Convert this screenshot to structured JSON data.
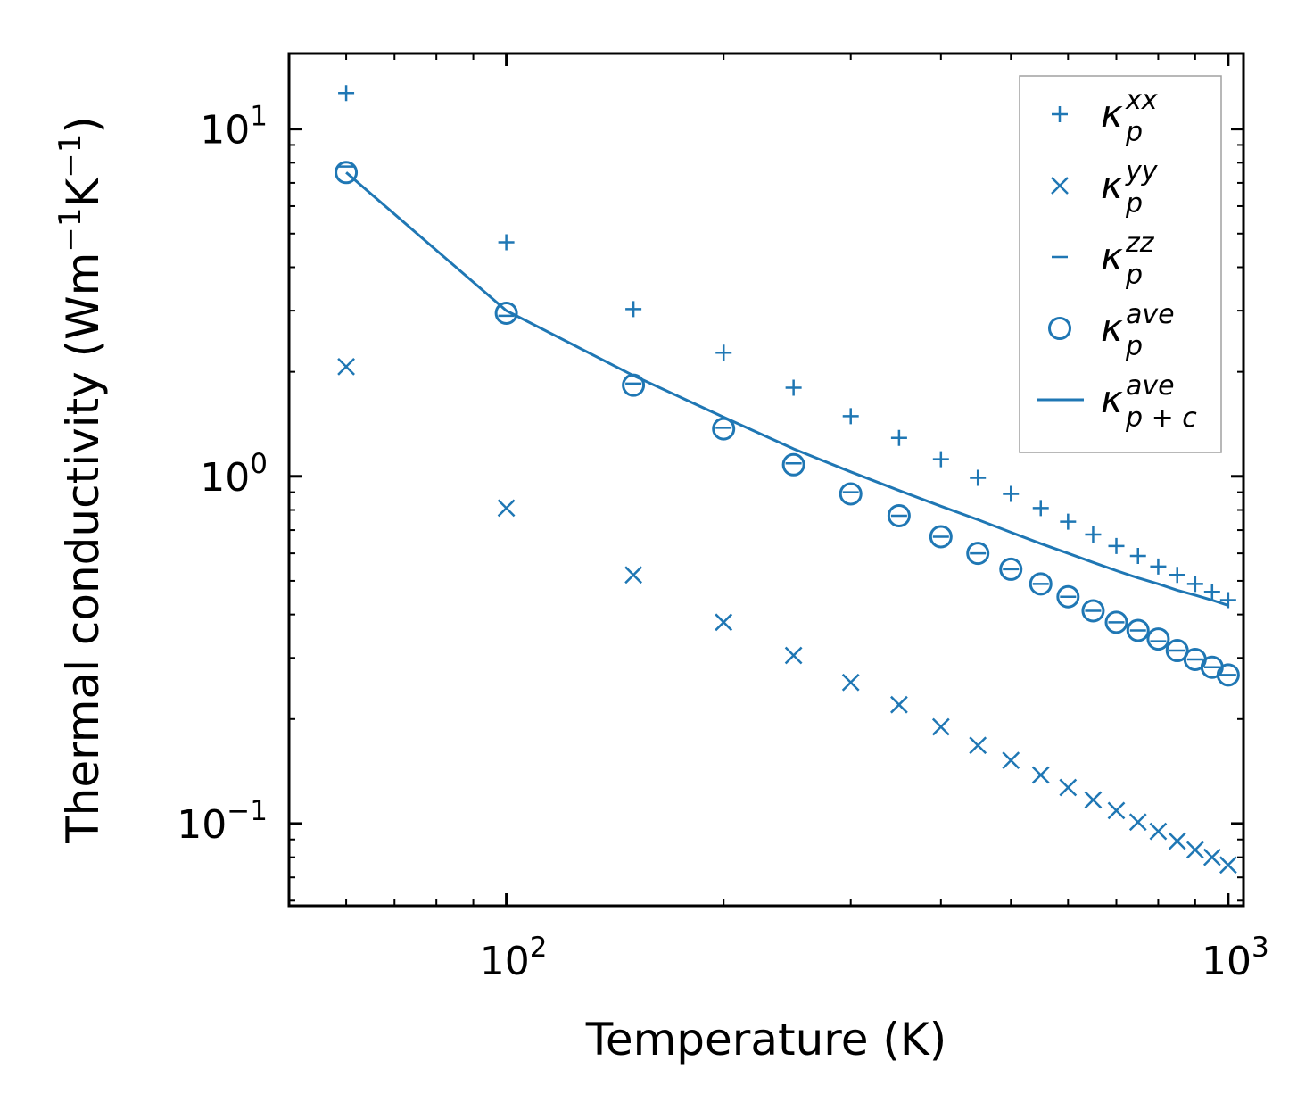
{
  "chart_data": {
    "type": "scatter",
    "title": "",
    "xlabel": "Temperature (K)",
    "ylabel": "Thermal conductivity (Wm",
    "ylabel_sup1": "−1",
    "ylabel_mid": "K",
    "ylabel_sup2": "−1",
    "ylabel_end": ")",
    "xscale": "log",
    "yscale": "log",
    "xlim": [
      50,
      1050
    ],
    "ylim": [
      0.058,
      16.5
    ],
    "grid": false,
    "legend_position": "top-right",
    "x_major_ticks": [
      {
        "value": 100,
        "base": "10",
        "exp": "2"
      },
      {
        "value": 1000,
        "base": "10",
        "exp": "3"
      }
    ],
    "y_major_ticks": [
      {
        "value": 0.1,
        "base": "10",
        "exp": "−1"
      },
      {
        "value": 1,
        "base": "10",
        "exp": "0"
      },
      {
        "value": 10,
        "base": "10",
        "exp": "1"
      }
    ],
    "color": "#1f77b4",
    "x": [
      60,
      100,
      150,
      200,
      250,
      300,
      350,
      400,
      450,
      500,
      550,
      600,
      650,
      700,
      750,
      800,
      850,
      900,
      950,
      1000
    ],
    "series": [
      {
        "name": "kxx",
        "legend_base": "κ",
        "legend_sup": "xx",
        "legend_sub": "p",
        "marker": "plus",
        "values": [
          12.7,
          4.72,
          3.03,
          2.27,
          1.8,
          1.49,
          1.29,
          1.12,
          0.99,
          0.89,
          0.81,
          0.74,
          0.68,
          0.63,
          0.59,
          0.55,
          0.52,
          0.49,
          0.465,
          0.44
        ]
      },
      {
        "name": "kyy",
        "legend_base": "κ",
        "legend_sup": "yy",
        "legend_sub": "p",
        "marker": "x",
        "values": [
          2.07,
          0.81,
          0.52,
          0.38,
          0.305,
          0.255,
          0.22,
          0.19,
          0.168,
          0.152,
          0.138,
          0.127,
          0.117,
          0.109,
          0.101,
          0.095,
          0.089,
          0.084,
          0.08,
          0.076
        ]
      },
      {
        "name": "kzz",
        "legend_base": "κ",
        "legend_sup": "zz",
        "legend_sub": "p",
        "marker": "hline",
        "values": [
          7.8,
          2.9,
          1.85,
          1.38,
          1.09,
          0.9,
          0.77,
          0.67,
          0.6,
          0.54,
          0.49,
          0.45,
          0.41,
          0.38,
          0.36,
          0.335,
          0.315,
          0.297,
          0.282,
          0.268
        ]
      },
      {
        "name": "kave",
        "legend_base": "κ",
        "legend_sup": "ave",
        "legend_sub": "p",
        "marker": "circle",
        "values": [
          7.5,
          2.95,
          1.83,
          1.37,
          1.08,
          0.89,
          0.77,
          0.67,
          0.6,
          0.54,
          0.49,
          0.45,
          0.41,
          0.38,
          0.36,
          0.34,
          0.315,
          0.297,
          0.282,
          0.268
        ]
      },
      {
        "name": "kave_pc",
        "legend_base": "κ",
        "legend_sup": "ave",
        "legend_sub": "p + c",
        "marker": "line",
        "values": [
          7.5,
          3.0,
          1.95,
          1.48,
          1.2,
          1.03,
          0.91,
          0.82,
          0.75,
          0.69,
          0.64,
          0.6,
          0.565,
          0.535,
          0.51,
          0.49,
          0.47,
          0.455,
          0.44,
          0.425
        ]
      }
    ]
  }
}
